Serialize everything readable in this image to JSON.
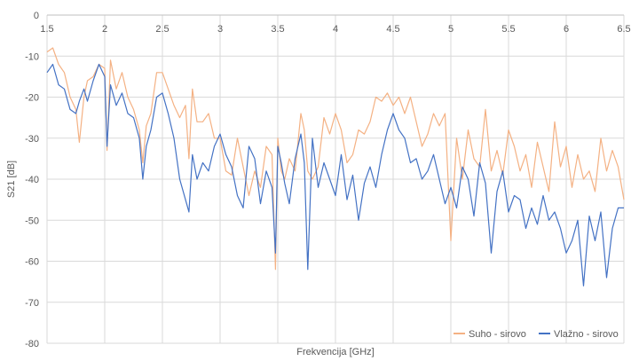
{
  "chart_data": {
    "type": "line",
    "title": "",
    "xlabel": "Frekvencija [GHz]",
    "ylabel": "S21 [dB]",
    "xlim": [
      1.5,
      6.5
    ],
    "ylim": [
      -80,
      0
    ],
    "x_ticks": [
      "1.5",
      "2",
      "2.5",
      "3",
      "3.5",
      "4",
      "4.5",
      "5",
      "5.5",
      "6",
      "6.5"
    ],
    "y_ticks": [
      "0",
      "-10",
      "-20",
      "-30",
      "-40",
      "-50",
      "-60",
      "-70",
      "-80"
    ],
    "x_tick_values": [
      1.5,
      2,
      2.5,
      3,
      3.5,
      4,
      4.5,
      5,
      5.5,
      6,
      6.5
    ],
    "y_tick_values": [
      0,
      -10,
      -20,
      -30,
      -40,
      -50,
      -60,
      -70,
      -80
    ],
    "grid": true,
    "legend_position": "bottom-right",
    "series": [
      {
        "name": "Suho - sirovo",
        "color": "#F4B183",
        "x": [
          1.5,
          1.55,
          1.6,
          1.65,
          1.7,
          1.75,
          1.78,
          1.82,
          1.85,
          1.9,
          1.95,
          2.0,
          2.02,
          2.05,
          2.1,
          2.15,
          2.2,
          2.25,
          2.3,
          2.33,
          2.36,
          2.4,
          2.45,
          2.5,
          2.55,
          2.6,
          2.65,
          2.7,
          2.73,
          2.76,
          2.8,
          2.85,
          2.9,
          2.95,
          3.0,
          3.05,
          3.1,
          3.15,
          3.2,
          3.25,
          3.3,
          3.35,
          3.4,
          3.45,
          3.48,
          3.5,
          3.53,
          3.56,
          3.6,
          3.65,
          3.7,
          3.73,
          3.76,
          3.8,
          3.85,
          3.9,
          3.95,
          4.0,
          4.05,
          4.1,
          4.15,
          4.2,
          4.25,
          4.3,
          4.35,
          4.4,
          4.45,
          4.5,
          4.55,
          4.6,
          4.65,
          4.7,
          4.75,
          4.8,
          4.85,
          4.9,
          4.95,
          5.0,
          5.05,
          5.1,
          5.15,
          5.2,
          5.25,
          5.3,
          5.35,
          5.4,
          5.45,
          5.5,
          5.55,
          5.6,
          5.65,
          5.7,
          5.75,
          5.8,
          5.85,
          5.9,
          5.95,
          6.0,
          6.05,
          6.1,
          6.15,
          6.2,
          6.25,
          6.3,
          6.35,
          6.4,
          6.45,
          6.5
        ],
        "values": [
          -9,
          -8,
          -12,
          -14,
          -20,
          -23,
          -31,
          -20,
          -16,
          -15,
          -12,
          -13,
          -33,
          -11,
          -18,
          -14,
          -20,
          -23,
          -28,
          -36,
          -27,
          -24,
          -14,
          -14,
          -18,
          -22,
          -25,
          -22,
          -35,
          -18,
          -26,
          -26,
          -24,
          -30,
          -30,
          -38,
          -39,
          -30,
          -37,
          -44,
          -38,
          -42,
          -32,
          -34,
          -62,
          -30,
          -38,
          -40,
          -35,
          -38,
          -24,
          -28,
          -38,
          -40,
          -37,
          -25,
          -29,
          -24,
          -28,
          -36,
          -34,
          -28,
          -29,
          -26,
          -20,
          -21,
          -19,
          -22,
          -20,
          -24,
          -20,
          -26,
          -32,
          -29,
          -24,
          -27,
          -24,
          -55,
          -30,
          -40,
          -28,
          -35,
          -37,
          -23,
          -38,
          -33,
          -39,
          -28,
          -32,
          -38,
          -34,
          -42,
          -31,
          -37,
          -43,
          -26,
          -37,
          -32,
          -42,
          -34,
          -40,
          -38,
          -43,
          -30,
          -38,
          -33,
          -37,
          -45
        ]
      },
      {
        "name": "Vlažno - sirovo",
        "color": "#4472C4",
        "x": [
          1.5,
          1.55,
          1.6,
          1.65,
          1.7,
          1.75,
          1.78,
          1.82,
          1.85,
          1.9,
          1.95,
          2.0,
          2.02,
          2.05,
          2.1,
          2.15,
          2.2,
          2.25,
          2.3,
          2.33,
          2.36,
          2.4,
          2.45,
          2.5,
          2.55,
          2.6,
          2.65,
          2.7,
          2.73,
          2.76,
          2.8,
          2.85,
          2.9,
          2.95,
          3.0,
          3.05,
          3.1,
          3.15,
          3.2,
          3.25,
          3.3,
          3.35,
          3.4,
          3.45,
          3.48,
          3.5,
          3.53,
          3.56,
          3.6,
          3.65,
          3.7,
          3.73,
          3.76,
          3.8,
          3.85,
          3.9,
          3.95,
          4.0,
          4.05,
          4.1,
          4.15,
          4.2,
          4.25,
          4.3,
          4.35,
          4.4,
          4.45,
          4.5,
          4.55,
          4.6,
          4.65,
          4.7,
          4.75,
          4.8,
          4.85,
          4.9,
          4.95,
          5.0,
          5.05,
          5.1,
          5.15,
          5.2,
          5.25,
          5.3,
          5.35,
          5.4,
          5.45,
          5.5,
          5.55,
          5.6,
          5.65,
          5.7,
          5.75,
          5.8,
          5.85,
          5.9,
          5.95,
          6.0,
          6.05,
          6.1,
          6.15,
          6.2,
          6.25,
          6.3,
          6.35,
          6.4,
          6.45,
          6.5
        ],
        "values": [
          -14,
          -12,
          -17,
          -18,
          -23,
          -24,
          -21,
          -18,
          -21,
          -16,
          -12,
          -15,
          -32,
          -17,
          -22,
          -19,
          -24,
          -25,
          -30,
          -40,
          -32,
          -28,
          -20,
          -19,
          -24,
          -30,
          -40,
          -45,
          -48,
          -34,
          -40,
          -36,
          -38,
          -32,
          -29,
          -34,
          -37,
          -44,
          -47,
          -32,
          -35,
          -46,
          -38,
          -42,
          -58,
          -32,
          -36,
          -41,
          -46,
          -35,
          -29,
          -36,
          -62,
          -30,
          -42,
          -36,
          -40,
          -44,
          -34,
          -45,
          -39,
          -50,
          -41,
          -37,
          -42,
          -34,
          -28,
          -24,
          -28,
          -30,
          -36,
          -35,
          -40,
          -38,
          -34,
          -40,
          -46,
          -42,
          -47,
          -37,
          -40,
          -49,
          -36,
          -41,
          -58,
          -43,
          -38,
          -48,
          -44,
          -45,
          -52,
          -47,
          -51,
          -44,
          -50,
          -48,
          -52,
          -58,
          -55,
          -50,
          -66,
          -49,
          -55,
          -48,
          -64,
          -52,
          -47,
          -47
        ]
      }
    ]
  }
}
